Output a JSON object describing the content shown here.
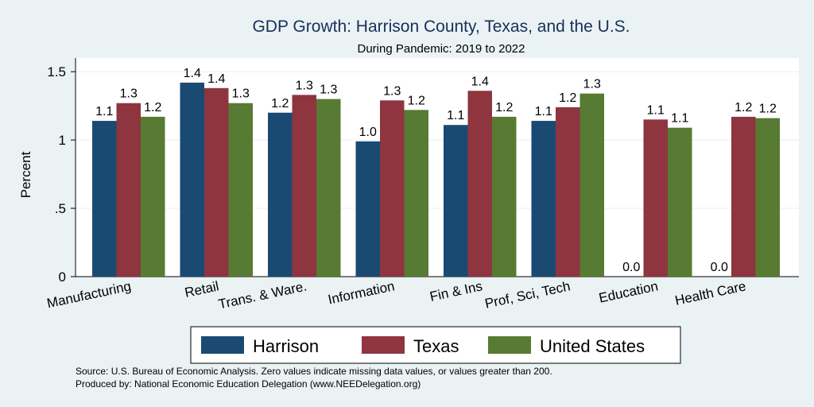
{
  "chart_data": {
    "type": "bar",
    "title": "GDP Growth: Harrison County, Texas, and the U.S.",
    "subtitle": "During Pandemic: 2019 to 2022",
    "ylabel": "Percent",
    "xlabel": "",
    "ylim": [
      0,
      1.6
    ],
    "yticks": [
      0,
      0.5,
      1,
      1.5
    ],
    "ytick_labels": [
      "0",
      ".5",
      "1",
      "1.5"
    ],
    "grid": true,
    "legend_position": "bottom",
    "categories": [
      "Manufacturing",
      "Retail",
      "Trans. & Ware.",
      "Information",
      "Fin & Ins",
      "Prof, Sci, Tech",
      "Education",
      "Health Care"
    ],
    "series": [
      {
        "name": "Harrison",
        "color": "#1a4a72",
        "values": [
          1.14,
          1.42,
          1.2,
          0.99,
          1.11,
          1.14,
          0.0,
          0.0
        ],
        "labels": [
          "1.1",
          "1.4",
          "1.2",
          "1.0",
          "1.1",
          "1.1",
          "0.0",
          "0.0"
        ]
      },
      {
        "name": "Texas",
        "color": "#8e3540",
        "values": [
          1.27,
          1.38,
          1.33,
          1.29,
          1.36,
          1.24,
          1.15,
          1.17
        ],
        "labels": [
          "1.3",
          "1.4",
          "1.3",
          "1.3",
          "1.4",
          "1.2",
          "1.1",
          "1.2"
        ]
      },
      {
        "name": "United States",
        "color": "#577b32",
        "values": [
          1.17,
          1.27,
          1.3,
          1.22,
          1.17,
          1.34,
          1.09,
          1.16
        ],
        "labels": [
          "1.2",
          "1.3",
          "1.3",
          "1.2",
          "1.2",
          "1.3",
          "1.1",
          "1.2"
        ]
      }
    ],
    "notes": [
      "Source: U.S. Bureau of Economic Analysis. Zero values indicate missing data values, or values greater than 200.",
      "Produced by: National Economic Education Delegation (www.NEEDelegation.org)"
    ]
  }
}
